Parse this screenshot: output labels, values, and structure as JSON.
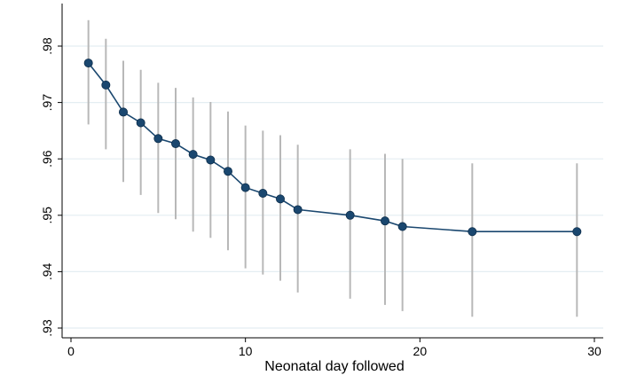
{
  "chart_data": {
    "type": "line",
    "title": "",
    "xlabel": "Neonatal day followed",
    "ylabel": "",
    "xlim": [
      0,
      30
    ],
    "ylim": [
      0.93,
      0.98
    ],
    "x_ticks": [
      0,
      10,
      20,
      30
    ],
    "x_tick_labels": [
      "0",
      "10",
      "20",
      "30"
    ],
    "y_ticks": [
      0.93,
      0.94,
      0.95,
      0.96,
      0.97,
      0.98
    ],
    "y_tick_labels": [
      ".93",
      ".94",
      ".95",
      ".96",
      ".97",
      ".98"
    ],
    "grid": "horizontal",
    "series": [
      {
        "x": [
          1,
          2,
          3,
          4,
          5,
          6,
          7,
          8,
          9,
          10,
          11,
          12,
          13,
          16,
          18,
          19,
          23,
          29
        ],
        "y": [
          0.977,
          0.9731,
          0.9683,
          0.9664,
          0.9636,
          0.9627,
          0.9608,
          0.9598,
          0.9578,
          0.9549,
          0.9539,
          0.9529,
          0.951,
          0.95,
          0.949,
          0.948,
          0.9471,
          0.9471
        ],
        "ci_low": [
          0.9661,
          0.9617,
          0.9559,
          0.9536,
          0.9504,
          0.9493,
          0.9471,
          0.946,
          0.9438,
          0.9406,
          0.9395,
          0.9384,
          0.9363,
          0.9352,
          0.9341,
          0.933,
          0.932,
          0.932
        ],
        "ci_high": [
          0.9846,
          0.9813,
          0.9774,
          0.9758,
          0.9735,
          0.9726,
          0.9709,
          0.9701,
          0.9684,
          0.9659,
          0.965,
          0.9642,
          0.9625,
          0.9617,
          0.9609,
          0.96,
          0.9592,
          0.9592
        ]
      }
    ],
    "colors": {
      "line": "#1a476f",
      "marker": "#1a476f",
      "ci": "#b8b8b8",
      "grid": "#e4eef2",
      "axis": "#000000"
    }
  }
}
